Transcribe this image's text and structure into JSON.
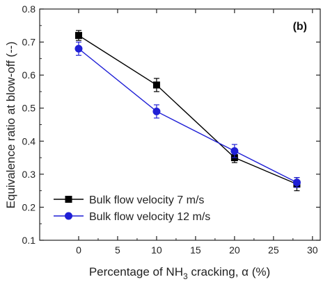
{
  "chart_data": {
    "type": "line",
    "panel_label": "(b)",
    "xlabel_prefix": "Percentage of NH",
    "xlabel_sub": "3",
    "xlabel_suffix": " cracking, α (%)",
    "ylabel": "Equivalence ratio at blow-off (--)",
    "xlim": [
      -5,
      31
    ],
    "ylim": [
      0.1,
      0.8
    ],
    "xticks": [
      0,
      5,
      10,
      15,
      20,
      25,
      30
    ],
    "yticks": [
      0.1,
      0.2,
      0.3,
      0.4,
      0.5,
      0.6,
      0.7,
      0.8
    ],
    "legend_position": "bottom-left",
    "series": [
      {
        "name": "Bulk flow velocity 7 m/s",
        "marker": "square",
        "color": "#000000",
        "x": [
          0,
          10,
          20,
          28
        ],
        "y": [
          0.72,
          0.57,
          0.35,
          0.27
        ],
        "err": [
          0.015,
          0.02,
          0.015,
          0.02
        ]
      },
      {
        "name": "Bulk flow velocity 12 m/s",
        "marker": "circle",
        "color": "#1f1fd6",
        "x": [
          0,
          10,
          20,
          28
        ],
        "y": [
          0.68,
          0.49,
          0.37,
          0.275
        ],
        "err": [
          0.02,
          0.02,
          0.02,
          0.015
        ]
      }
    ]
  }
}
